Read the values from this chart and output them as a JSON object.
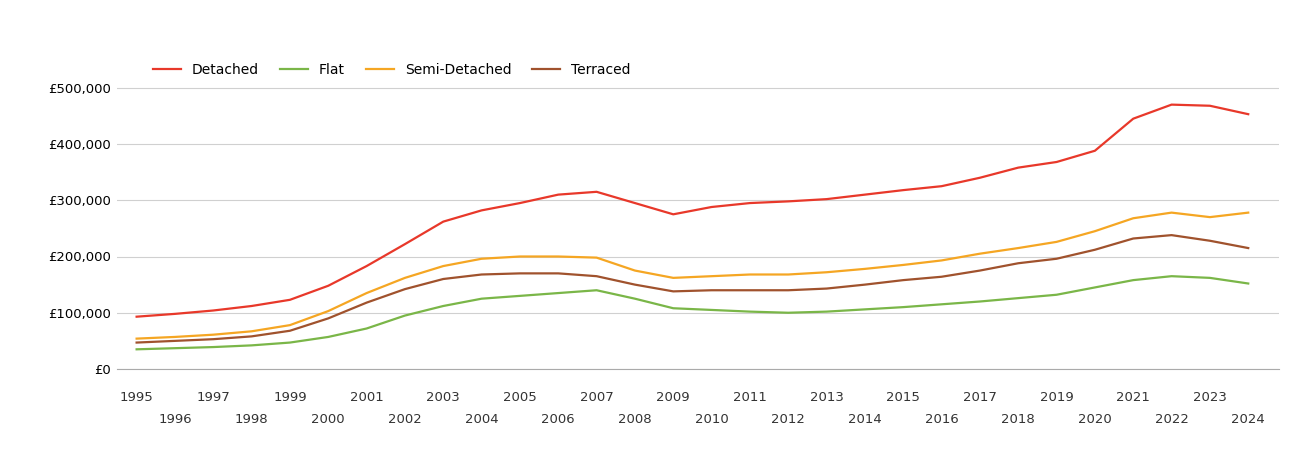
{
  "series": {
    "Detached": {
      "color": "#e8382a",
      "years": [
        1995,
        1996,
        1997,
        1998,
        1999,
        2000,
        2001,
        2002,
        2003,
        2004,
        2005,
        2006,
        2007,
        2008,
        2009,
        2010,
        2011,
        2012,
        2013,
        2014,
        2015,
        2016,
        2017,
        2018,
        2019,
        2020,
        2021,
        2022,
        2023,
        2024
      ],
      "values": [
        93000,
        98000,
        104000,
        112000,
        123000,
        148000,
        183000,
        222000,
        262000,
        282000,
        295000,
        310000,
        315000,
        295000,
        275000,
        288000,
        295000,
        298000,
        302000,
        310000,
        318000,
        325000,
        340000,
        358000,
        368000,
        388000,
        445000,
        470000,
        468000,
        453000
      ]
    },
    "Flat": {
      "color": "#7ab648",
      "years": [
        1995,
        1996,
        1997,
        1998,
        1999,
        2000,
        2001,
        2002,
        2003,
        2004,
        2005,
        2006,
        2007,
        2008,
        2009,
        2010,
        2011,
        2012,
        2013,
        2014,
        2015,
        2016,
        2017,
        2018,
        2019,
        2020,
        2021,
        2022,
        2023,
        2024
      ],
      "values": [
        35000,
        37000,
        39000,
        42000,
        47000,
        57000,
        72000,
        95000,
        112000,
        125000,
        130000,
        135000,
        140000,
        125000,
        108000,
        105000,
        102000,
        100000,
        102000,
        106000,
        110000,
        115000,
        120000,
        126000,
        132000,
        145000,
        158000,
        165000,
        162000,
        152000
      ]
    },
    "Semi-Detached": {
      "color": "#f5a623",
      "years": [
        1995,
        1996,
        1997,
        1998,
        1999,
        2000,
        2001,
        2002,
        2003,
        2004,
        2005,
        2006,
        2007,
        2008,
        2009,
        2010,
        2011,
        2012,
        2013,
        2014,
        2015,
        2016,
        2017,
        2018,
        2019,
        2020,
        2021,
        2022,
        2023,
        2024
      ],
      "values": [
        54000,
        57000,
        61000,
        67000,
        78000,
        103000,
        135000,
        162000,
        183000,
        196000,
        200000,
        200000,
        198000,
        175000,
        162000,
        165000,
        168000,
        168000,
        172000,
        178000,
        185000,
        193000,
        205000,
        215000,
        226000,
        245000,
        268000,
        278000,
        270000,
        278000
      ]
    },
    "Terraced": {
      "color": "#a0522d",
      "years": [
        1995,
        1996,
        1997,
        1998,
        1999,
        2000,
        2001,
        2002,
        2003,
        2004,
        2005,
        2006,
        2007,
        2008,
        2009,
        2010,
        2011,
        2012,
        2013,
        2014,
        2015,
        2016,
        2017,
        2018,
        2019,
        2020,
        2021,
        2022,
        2023,
        2024
      ],
      "values": [
        47000,
        50000,
        53000,
        58000,
        68000,
        90000,
        118000,
        142000,
        160000,
        168000,
        170000,
        170000,
        165000,
        150000,
        138000,
        140000,
        140000,
        140000,
        143000,
        150000,
        158000,
        164000,
        175000,
        188000,
        196000,
        212000,
        232000,
        238000,
        228000,
        215000
      ]
    }
  },
  "ylim": [
    0,
    560000
  ],
  "yticks": [
    0,
    100000,
    200000,
    300000,
    400000,
    500000
  ],
  "background_color": "#ffffff",
  "grid_color": "#d0d0d0",
  "line_width": 1.6,
  "legend_order": [
    "Detached",
    "Flat",
    "Semi-Detached",
    "Terraced"
  ]
}
